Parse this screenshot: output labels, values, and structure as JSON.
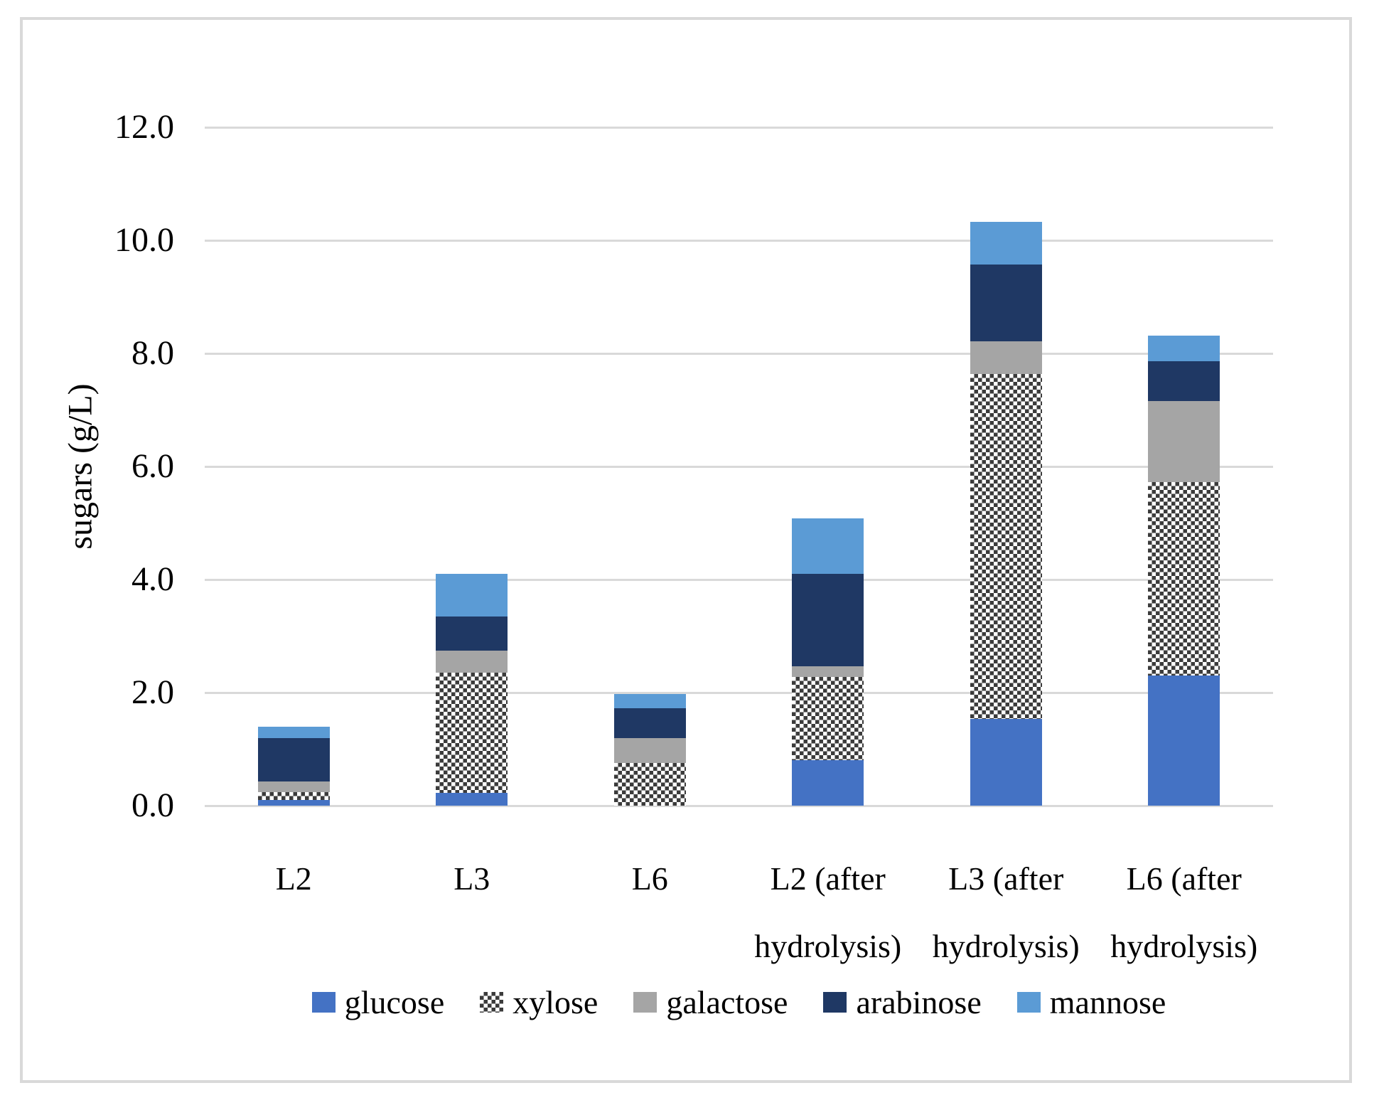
{
  "figure": {
    "background": "#FFFFFF",
    "border_color": "#D9D9D9",
    "gridline_color": "#D9D9D9",
    "text_color": "#000000"
  },
  "axes": {
    "y_title": "sugars (g/L)",
    "y_ticks": [
      "0.0",
      "2.0",
      "4.0",
      "6.0",
      "8.0",
      "10.0",
      "12.0"
    ]
  },
  "chart_data": {
    "type": "bar",
    "stacked": true,
    "title": "",
    "xlabel": "",
    "ylabel": "sugars (g/L)",
    "ylim": [
      0,
      12
    ],
    "ytick_step": 2,
    "grid": true,
    "legend_position": "bottom",
    "categories": [
      "L2",
      "L3",
      "L6",
      "L2 (after hydrolysis)",
      "L3 (after hydrolysis)",
      "L6 (after hydrolysis)"
    ],
    "category_label_lines": [
      [
        "L2"
      ],
      [
        "L3"
      ],
      [
        "L6"
      ],
      [
        "L2 (after",
        "hydrolysis)"
      ],
      [
        "L3 (after",
        "hydrolysis)"
      ],
      [
        "L6 (after",
        "hydrolysis)"
      ]
    ],
    "series": [
      {
        "name": "glucose",
        "color": "#4472C4",
        "pattern": "solid",
        "values": [
          0.1,
          0.23,
          0.0,
          0.81,
          1.53,
          2.3
        ]
      },
      {
        "name": "xylose",
        "color": "#3B3B3B",
        "pattern": "checker",
        "values": [
          0.14,
          2.12,
          0.75,
          1.47,
          6.1,
          3.42
        ]
      },
      {
        "name": "galactose",
        "color": "#A5A5A5",
        "pattern": "solid",
        "values": [
          0.19,
          0.39,
          0.45,
          0.19,
          0.58,
          1.44
        ]
      },
      {
        "name": "arabinose",
        "color": "#1F3864",
        "pattern": "solid",
        "values": [
          0.77,
          0.61,
          0.52,
          1.63,
          1.36,
          0.7
        ]
      },
      {
        "name": "mannose",
        "color": "#5B9BD5",
        "pattern": "solid",
        "values": [
          0.2,
          0.75,
          0.26,
          0.98,
          0.76,
          0.46
        ]
      }
    ],
    "stack_totals": [
      1.4,
      4.1,
      1.98,
      5.08,
      10.33,
      8.32
    ]
  }
}
